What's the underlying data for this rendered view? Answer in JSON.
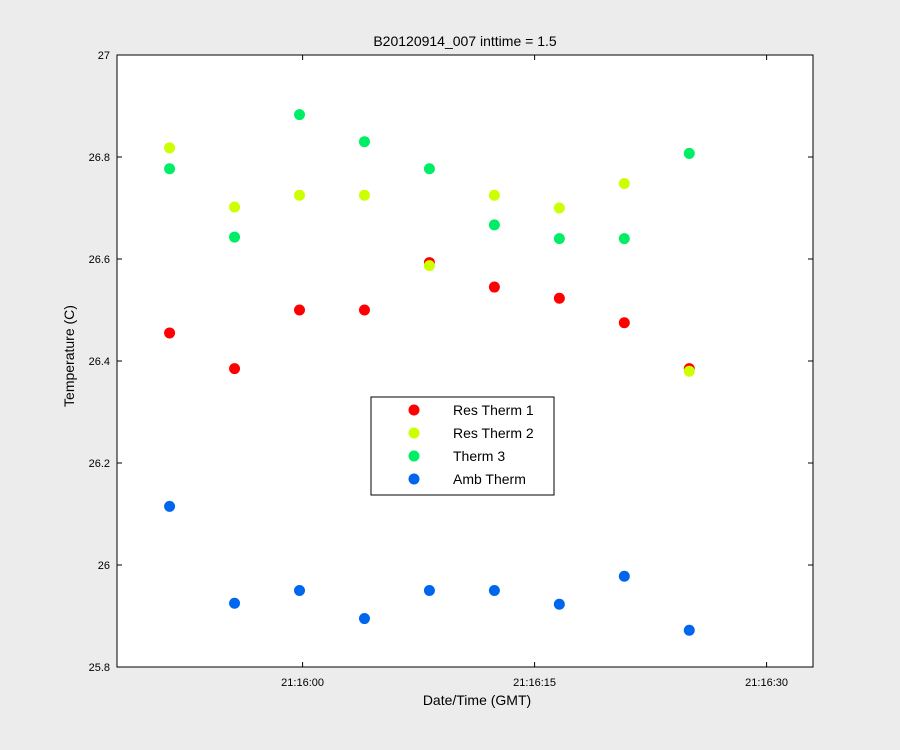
{
  "chart_data": {
    "type": "scatter",
    "title": "B20120914_007 inttime = 1.5",
    "xlabel": "Date/Time (GMT)",
    "ylabel": "Temperature (C)",
    "x_unit": "seconds after 21:15:00 GMT (axis shows clock time)",
    "xlim": [
      "21:15:48.0",
      "21:16:33.0"
    ],
    "ylim": [
      25.8,
      27.0
    ],
    "x_ticks": [
      "21:16:00",
      "21:16:15",
      "21:16:30"
    ],
    "y_ticks": [
      "25.8",
      "26",
      "26.2",
      "26.4",
      "26.6",
      "26.8",
      "27"
    ],
    "grid": false,
    "legend_position": "center",
    "series": [
      {
        "name": "Res Therm 1",
        "color": "#ff0000",
        "points": [
          [
            "21:15:51.4",
            26.455
          ],
          [
            "21:15:55.6",
            26.385
          ],
          [
            "21:15:59.8",
            26.5
          ],
          [
            "21:16:04.0",
            26.5
          ],
          [
            "21:16:08.2",
            26.593
          ],
          [
            "21:16:12.4",
            26.545
          ],
          [
            "21:16:16.6",
            26.523
          ],
          [
            "21:16:20.8",
            26.475
          ],
          [
            "21:16:25.0",
            26.385
          ]
        ]
      },
      {
        "name": "Res Therm 2",
        "color": "#ccff00",
        "points": [
          [
            "21:15:51.4",
            26.818
          ],
          [
            "21:15:55.6",
            26.702
          ],
          [
            "21:15:59.8",
            26.725
          ],
          [
            "21:16:04.0",
            26.725
          ],
          [
            "21:16:08.2",
            26.587
          ],
          [
            "21:16:12.4",
            26.725
          ],
          [
            "21:16:16.6",
            26.7
          ],
          [
            "21:16:20.8",
            26.748
          ],
          [
            "21:16:25.0",
            26.38
          ]
        ]
      },
      {
        "name": "Therm 3",
        "color": "#00ee66",
        "points": [
          [
            "21:15:51.4",
            26.777
          ],
          [
            "21:15:55.6",
            26.643
          ],
          [
            "21:15:59.8",
            26.883
          ],
          [
            "21:16:04.0",
            26.83
          ],
          [
            "21:16:08.2",
            26.777
          ],
          [
            "21:16:12.4",
            26.667
          ],
          [
            "21:16:16.6",
            26.64
          ],
          [
            "21:16:20.8",
            26.64
          ],
          [
            "21:16:25.0",
            26.807
          ]
        ]
      },
      {
        "name": "Amb Therm",
        "color": "#0066ee",
        "points": [
          [
            "21:15:51.4",
            26.115
          ],
          [
            "21:15:55.6",
            25.925
          ],
          [
            "21:15:59.8",
            25.95
          ],
          [
            "21:16:04.0",
            25.895
          ],
          [
            "21:16:08.2",
            25.95
          ],
          [
            "21:16:12.4",
            25.95
          ],
          [
            "21:16:16.6",
            25.923
          ],
          [
            "21:16:20.8",
            25.978
          ],
          [
            "21:16:25.0",
            25.872
          ]
        ]
      }
    ]
  }
}
